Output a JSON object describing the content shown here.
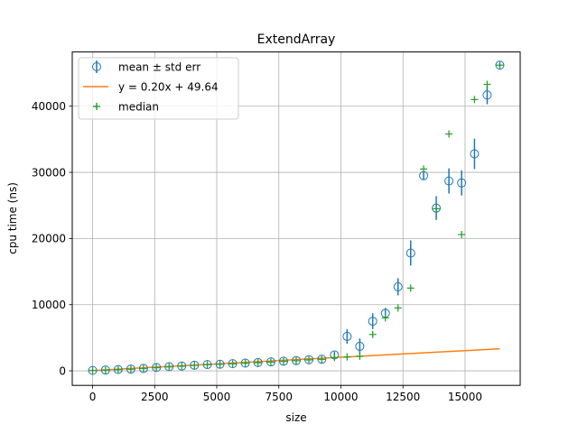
{
  "chart_data": {
    "type": "scatter",
    "title": "ExtendArray",
    "xlabel": "size",
    "ylabel": "cpu time (ns)",
    "xlim": [
      -820,
      17220
    ],
    "ylim": [
      -2200,
      48200
    ],
    "xticks": [
      0,
      2500,
      5000,
      7500,
      10000,
      12500,
      15000
    ],
    "xtick_labels": [
      "0",
      "2500",
      "5000",
      "7500",
      "10000",
      "12500",
      "15000"
    ],
    "yticks": [
      0,
      10000,
      20000,
      30000,
      40000
    ],
    "ytick_labels": [
      "0",
      "10000",
      "20000",
      "30000",
      "40000"
    ],
    "grid": true,
    "legend_position": "top-left",
    "colors": {
      "mean": "#1f77b4",
      "fit": "#ff7f0e",
      "median": "#2ca02c",
      "grid": "#b0b0b0"
    },
    "series": [
      {
        "name": "mean ± std err",
        "kind": "errorbar",
        "points": [
          {
            "x": 0,
            "y": 60,
            "err": 0
          },
          {
            "x": 520,
            "y": 120,
            "err": 0
          },
          {
            "x": 1030,
            "y": 200,
            "err": 0
          },
          {
            "x": 1540,
            "y": 260,
            "err": 0
          },
          {
            "x": 2050,
            "y": 360,
            "err": 0
          },
          {
            "x": 2570,
            "y": 500,
            "err": 0
          },
          {
            "x": 3080,
            "y": 620,
            "err": 0
          },
          {
            "x": 3590,
            "y": 720,
            "err": 0
          },
          {
            "x": 4100,
            "y": 850,
            "err": 0
          },
          {
            "x": 4620,
            "y": 950,
            "err": 0
          },
          {
            "x": 5130,
            "y": 1000,
            "err": 0
          },
          {
            "x": 5640,
            "y": 1080,
            "err": 0
          },
          {
            "x": 6150,
            "y": 1170,
            "err": 0
          },
          {
            "x": 6660,
            "y": 1250,
            "err": 0
          },
          {
            "x": 7180,
            "y": 1350,
            "err": 0
          },
          {
            "x": 7690,
            "y": 1450,
            "err": 0
          },
          {
            "x": 8200,
            "y": 1550,
            "err": 0
          },
          {
            "x": 8710,
            "y": 1680,
            "err": 0
          },
          {
            "x": 9230,
            "y": 1750,
            "err": 0
          },
          {
            "x": 9740,
            "y": 2400,
            "err": 500
          },
          {
            "x": 10250,
            "y": 5200,
            "err": 1100
          },
          {
            "x": 10760,
            "y": 3700,
            "err": 1200
          },
          {
            "x": 11280,
            "y": 7500,
            "err": 1200
          },
          {
            "x": 11790,
            "y": 8700,
            "err": 800
          },
          {
            "x": 12300,
            "y": 12700,
            "err": 1300
          },
          {
            "x": 12810,
            "y": 17800,
            "err": 1900
          },
          {
            "x": 13330,
            "y": 29500,
            "err": 600
          },
          {
            "x": 13840,
            "y": 24600,
            "err": 1800
          },
          {
            "x": 14350,
            "y": 28700,
            "err": 1900
          },
          {
            "x": 14860,
            "y": 28400,
            "err": 1900
          },
          {
            "x": 15380,
            "y": 32800,
            "err": 2300
          },
          {
            "x": 15890,
            "y": 41700,
            "err": 1400
          },
          {
            "x": 16400,
            "y": 46200,
            "err": 300
          }
        ]
      },
      {
        "name": "y = 0.20x + 49.64",
        "kind": "line",
        "slope": 0.2,
        "intercept": 49.64,
        "x_range": [
          0,
          16400
        ]
      },
      {
        "name": "median",
        "kind": "marker",
        "points": [
          {
            "x": 0,
            "y": 60
          },
          {
            "x": 520,
            "y": 110
          },
          {
            "x": 1030,
            "y": 190
          },
          {
            "x": 1540,
            "y": 250
          },
          {
            "x": 2050,
            "y": 350
          },
          {
            "x": 2570,
            "y": 480
          },
          {
            "x": 3080,
            "y": 600
          },
          {
            "x": 3590,
            "y": 700
          },
          {
            "x": 4100,
            "y": 830
          },
          {
            "x": 4620,
            "y": 930
          },
          {
            "x": 5130,
            "y": 980
          },
          {
            "x": 5640,
            "y": 1060
          },
          {
            "x": 6150,
            "y": 1150
          },
          {
            "x": 6660,
            "y": 1230
          },
          {
            "x": 7180,
            "y": 1330
          },
          {
            "x": 7690,
            "y": 1430
          },
          {
            "x": 8200,
            "y": 1530
          },
          {
            "x": 8710,
            "y": 1650
          },
          {
            "x": 9230,
            "y": 1730
          },
          {
            "x": 9740,
            "y": 2000
          },
          {
            "x": 10250,
            "y": 2100
          },
          {
            "x": 10760,
            "y": 2200
          },
          {
            "x": 11280,
            "y": 5500
          },
          {
            "x": 11790,
            "y": 8000
          },
          {
            "x": 12300,
            "y": 9500
          },
          {
            "x": 12810,
            "y": 12500
          },
          {
            "x": 13330,
            "y": 30500
          },
          {
            "x": 13840,
            "y": 24500
          },
          {
            "x": 14350,
            "y": 35800
          },
          {
            "x": 14860,
            "y": 20600
          },
          {
            "x": 15380,
            "y": 41000
          },
          {
            "x": 15890,
            "y": 43300
          },
          {
            "x": 16400,
            "y": 46200
          }
        ]
      }
    ]
  }
}
